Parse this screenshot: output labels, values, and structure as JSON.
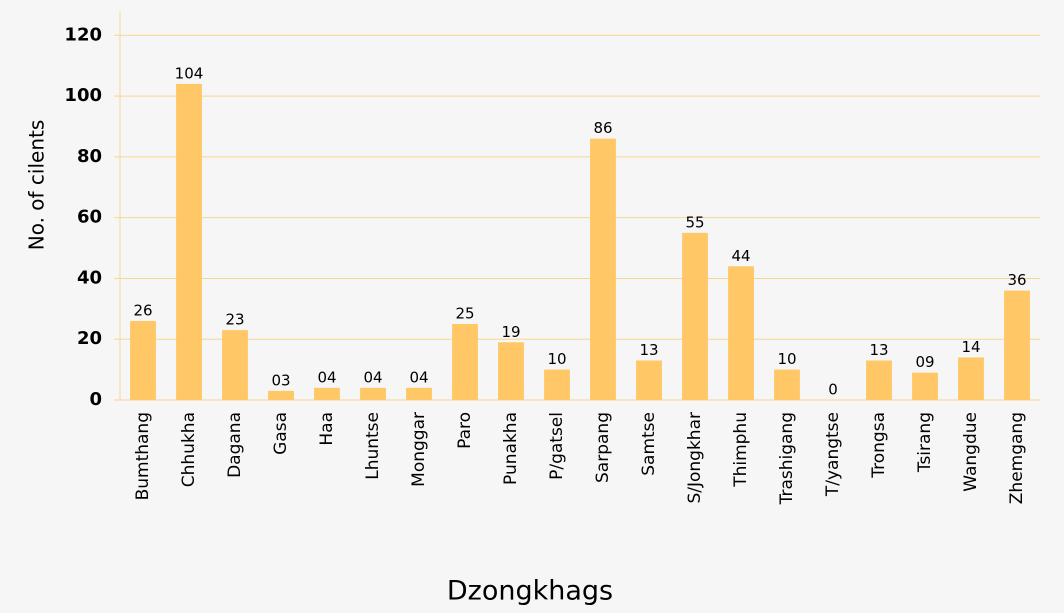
{
  "chart_data": {
    "type": "bar",
    "x_label": "Dzongkhags",
    "y_label": "No. of cilents",
    "categories": [
      "Bumthang",
      "Chhukha",
      "Dagana",
      "Gasa",
      "Haa",
      "Lhuntse",
      "Monggar",
      "Paro",
      "Punakha",
      "P/gatsel",
      "Sarpang",
      "Samtse",
      "S/Jongkhar",
      "Thimphu",
      "Trashigang",
      "T/yangtse",
      "Trongsa",
      "Tsirang",
      "Wangdue",
      "Zhemgang"
    ],
    "values": [
      26,
      104,
      23,
      3,
      4,
      4,
      4,
      25,
      19,
      10,
      86,
      13,
      55,
      44,
      10,
      0,
      13,
      9,
      14,
      36
    ],
    "value_labels": [
      "26",
      "104",
      "23",
      "03",
      "04",
      "04",
      "04",
      "25",
      "19",
      "10",
      "86",
      "13",
      "55",
      "44",
      "10",
      "0",
      "13",
      "09",
      "14",
      "36"
    ],
    "color": "#ffc766",
    "ylim": [
      0,
      128
    ],
    "yticks": [
      0,
      20,
      40,
      60,
      80,
      100,
      120
    ],
    "grid": true
  }
}
